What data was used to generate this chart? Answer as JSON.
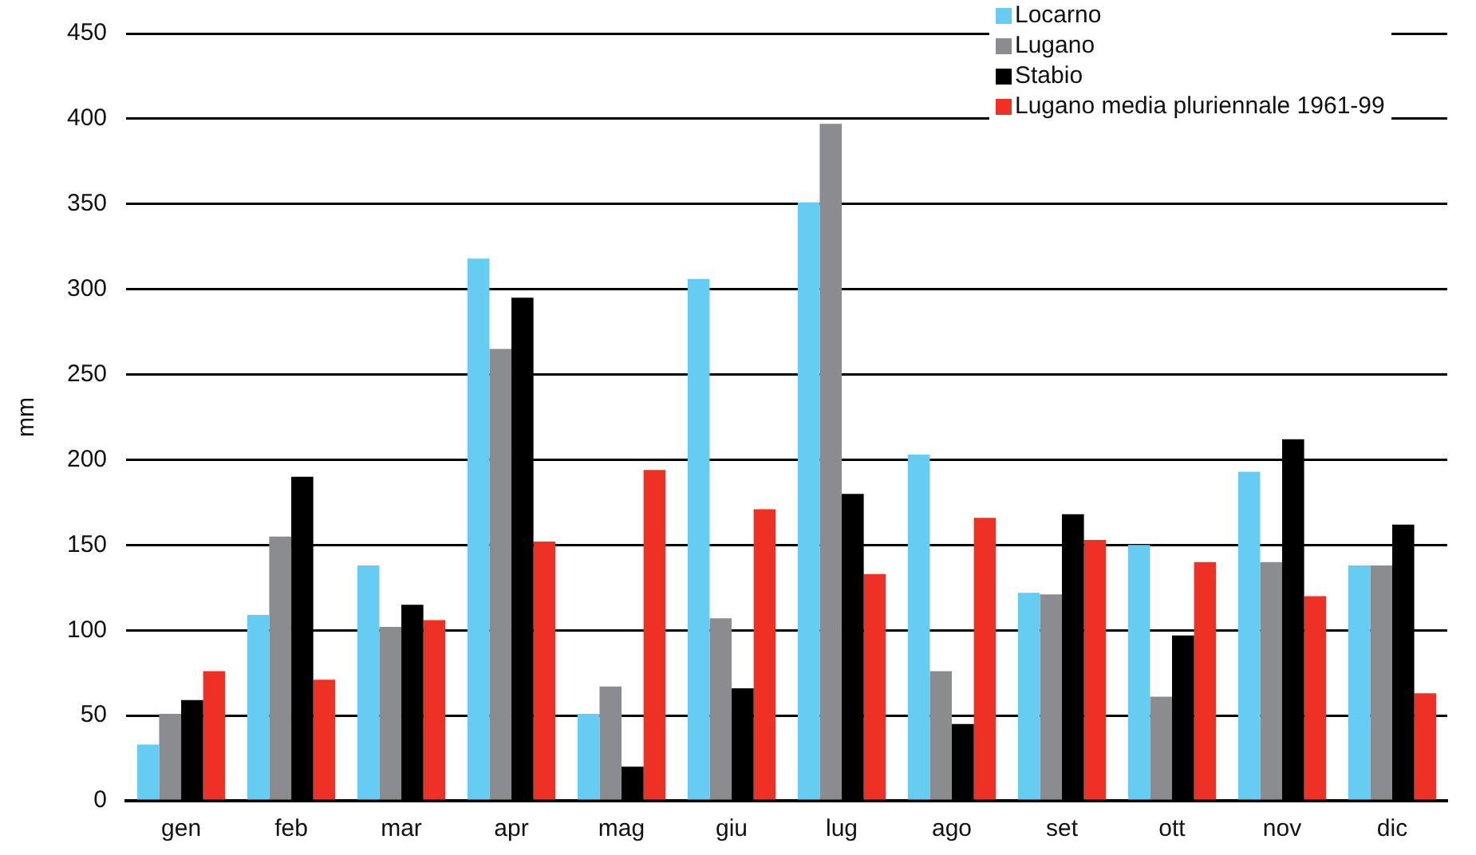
{
  "chart_data": {
    "type": "bar",
    "ylabel": "mm",
    "categories": [
      "gen",
      "feb",
      "mar",
      "apr",
      "mag",
      "giu",
      "lug",
      "ago",
      "set",
      "ott",
      "nov",
      "dic"
    ],
    "series": [
      {
        "name": "Locarno",
        "color": "#66ccf2",
        "values": [
          33,
          109,
          138,
          318,
          51,
          306,
          351,
          203,
          122,
          150,
          193,
          138
        ]
      },
      {
        "name": "Lugano",
        "color": "#8a8c90",
        "values": [
          51,
          155,
          102,
          265,
          67,
          107,
          397,
          76,
          121,
          61,
          140,
          138
        ]
      },
      {
        "name": "Stabio",
        "color": "#000000",
        "values": [
          59,
          190,
          115,
          295,
          20,
          66,
          180,
          45,
          168,
          97,
          212,
          162
        ]
      },
      {
        "name": "Lugano media pluriennale 1961-99",
        "color": "#ee3124",
        "values": [
          76,
          71,
          106,
          152,
          194,
          171,
          133,
          166,
          153,
          140,
          120,
          63
        ]
      }
    ],
    "ylim": [
      0,
      450
    ],
    "yticks": [
      0,
      50,
      100,
      150,
      200,
      250,
      300,
      350,
      400,
      450
    ],
    "grid": "y",
    "legend": "top right"
  }
}
